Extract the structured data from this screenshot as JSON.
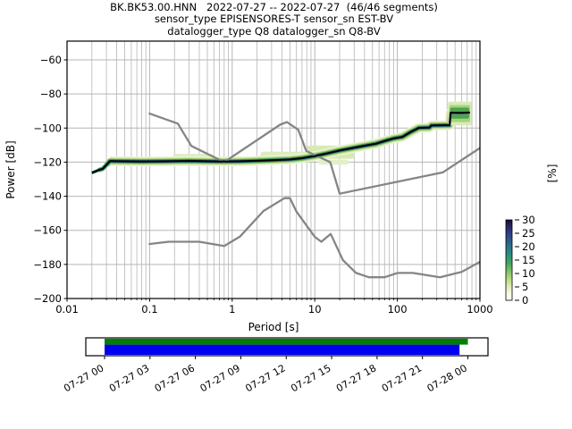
{
  "title": {
    "line1": "BK.BK53.00.HNN   2022-07-27 -- 2022-07-27  (46/46 segments)",
    "line2": "sensor_type EPISENSORES-T sensor_sn EST-BV",
    "line3": "datalogger_type Q8 datalogger_sn Q8-BV"
  },
  "axes": {
    "xlabel": "Period [s]",
    "ylabel": "Power [dB]",
    "xlim": [
      0.01,
      1000
    ],
    "ylim": [
      -200,
      -49
    ],
    "xscale": "log",
    "x_tick_values": [
      0.01,
      0.1,
      1,
      10,
      100,
      1000
    ],
    "x_tick_labels": [
      "0.01",
      "0.1",
      "1",
      "10",
      "100",
      "1000"
    ],
    "y_tick_values": [
      -60,
      -80,
      -100,
      -120,
      -140,
      -160,
      -180,
      -200
    ],
    "grid": true,
    "grid_color": "#b6b6b6"
  },
  "colorbar": {
    "label": "[%]",
    "tick_values": [
      0,
      5,
      10,
      15,
      20,
      25,
      30
    ],
    "range": [
      0,
      30
    ],
    "gradient_bottom_to_top": [
      "#ffffff",
      "#f4f8e4",
      "#dcebae",
      "#b3d97d",
      "#7fc169",
      "#47a85f",
      "#2f9478",
      "#2c7d85",
      "#2f5f8a",
      "#32418a",
      "#2c2a68",
      "#1b0e38"
    ]
  },
  "chart_data": {
    "type": "line",
    "title": "BK.BK53.00.HNN 2022-07-27 -- 2022-07-27 (46/46 segments)",
    "xlabel": "Period [s]",
    "ylabel": "Power [dB]",
    "xscale": "log",
    "xlim": [
      0.01,
      1000
    ],
    "ylim": [
      -200,
      -49
    ],
    "legend": false,
    "series": [
      {
        "name": "psd-mode",
        "color": "#000000",
        "width": 1.8,
        "points": [
          [
            0.02,
            -126.3
          ],
          [
            0.024,
            -124.7
          ],
          [
            0.027,
            -123.9
          ],
          [
            0.03,
            -121.6
          ],
          [
            0.033,
            -119.4
          ],
          [
            0.05,
            -119.5
          ],
          [
            0.08,
            -119.6
          ],
          [
            0.15,
            -119.5
          ],
          [
            0.3,
            -119.3
          ],
          [
            0.55,
            -119.5
          ],
          [
            0.8,
            -119.6
          ],
          [
            1.2,
            -119.5
          ],
          [
            2.0,
            -119.2
          ],
          [
            3.0,
            -118.9
          ],
          [
            5.0,
            -118.4
          ],
          [
            7.0,
            -117.7
          ],
          [
            10,
            -116.4
          ],
          [
            14,
            -114.9
          ],
          [
            20,
            -113.2
          ],
          [
            28,
            -111.8
          ],
          [
            40,
            -110.4
          ],
          [
            55,
            -109.2
          ],
          [
            70,
            -107.6
          ],
          [
            90,
            -106.1
          ],
          [
            115,
            -105.2
          ],
          [
            145,
            -102.3
          ],
          [
            182,
            -99.9
          ],
          [
            245,
            -99.7
          ],
          [
            258,
            -98.5
          ],
          [
            430,
            -98.3
          ],
          [
            442,
            -91.0
          ],
          [
            600,
            -91.1
          ],
          [
            755,
            -90.9
          ]
        ]
      },
      {
        "name": "noise-model-high-nhnm",
        "color": "#858585",
        "width": 2.3,
        "points": [
          [
            0.1,
            -91.5
          ],
          [
            0.22,
            -97.4
          ],
          [
            0.32,
            -110.5
          ],
          [
            0.8,
            -120.0
          ],
          [
            3.8,
            -98.0
          ],
          [
            4.6,
            -96.5
          ],
          [
            6.3,
            -101.0
          ],
          [
            7.9,
            -113.5
          ],
          [
            15.4,
            -120.0
          ],
          [
            20.0,
            -138.5
          ],
          [
            354.8,
            -126.0
          ],
          [
            1000,
            -111.7
          ]
        ]
      },
      {
        "name": "noise-model-low-nlnm",
        "color": "#858585",
        "width": 2.3,
        "points": [
          [
            0.1,
            -168.0
          ],
          [
            0.17,
            -166.7
          ],
          [
            0.4,
            -166.7
          ],
          [
            0.8,
            -169.2
          ],
          [
            1.24,
            -163.7
          ],
          [
            2.4,
            -148.6
          ],
          [
            4.3,
            -141.1
          ],
          [
            5.0,
            -141.1
          ],
          [
            6.0,
            -149.0
          ],
          [
            10.0,
            -163.8
          ],
          [
            12.0,
            -166.7
          ],
          [
            15.6,
            -162.1
          ],
          [
            21.9,
            -177.5
          ],
          [
            31.6,
            -185.0
          ],
          [
            45.0,
            -187.5
          ],
          [
            70.0,
            -187.5
          ],
          [
            101.0,
            -185.0
          ],
          [
            154.0,
            -185.0
          ],
          [
            328.0,
            -187.5
          ],
          [
            600.0,
            -184.4
          ],
          [
            1000,
            -178.5
          ]
        ]
      }
    ],
    "histogram_band_layers": [
      {
        "color": "#edf3da",
        "width": 11,
        "from": 4
      },
      {
        "color": "#d4e6a8",
        "width": 8.5,
        "from": 4
      },
      {
        "color": "#a3cf75",
        "width": 6.5,
        "from": 3
      },
      {
        "color": "#55a54f",
        "width": 4.8,
        "from": 1
      },
      {
        "color": "#2b8578",
        "width": 3.4,
        "from": 0
      }
    ],
    "histogram_core_color": "#232e60",
    "histogram_core_width": 2.4,
    "histogram_blobs": [
      {
        "p0": 0.19,
        "p1": 0.6,
        "db0": -120.5,
        "db1": -115.2,
        "color": "#dcecbc"
      },
      {
        "p0": 2.2,
        "p1": 9,
        "db0": -119.5,
        "db1": -113.8,
        "color": "#dcecbc"
      },
      {
        "p0": 8,
        "p1": 30,
        "db0": -118.0,
        "db1": -110.3,
        "color": "#d7e9b4"
      },
      {
        "p0": 11,
        "p1": 26,
        "db0": -121.5,
        "db1": -118.5,
        "color": "#e4efca"
      }
    ],
    "histogram_end_blobs": [
      {
        "p0": 410,
        "p1": 790,
        "db0": -98.5,
        "db1": -84.5,
        "color": "#d9ebb8"
      },
      {
        "p0": 425,
        "p1": 760,
        "db0": -96.5,
        "db1": -86.5,
        "color": "#a8d37e"
      },
      {
        "p0": 435,
        "p1": 740,
        "db0": -94.5,
        "db1": -88.0,
        "color": "#4fa34f"
      }
    ]
  },
  "coverage": {
    "tick_labels": [
      "07-27 00",
      "07-27 03",
      "07-27 06",
      "07-27 09",
      "07-27 12",
      "07-27 15",
      "07-27 18",
      "07-27 21",
      "07-28 00"
    ],
    "bars": [
      {
        "name": "coverage-span-bar",
        "color": "#007f00",
        "start_frac": 0.0,
        "end_frac": 1.0
      },
      {
        "name": "coverage-data-bar",
        "color": "#0000f0",
        "start_frac": 0.0,
        "end_frac": 0.977
      }
    ]
  }
}
